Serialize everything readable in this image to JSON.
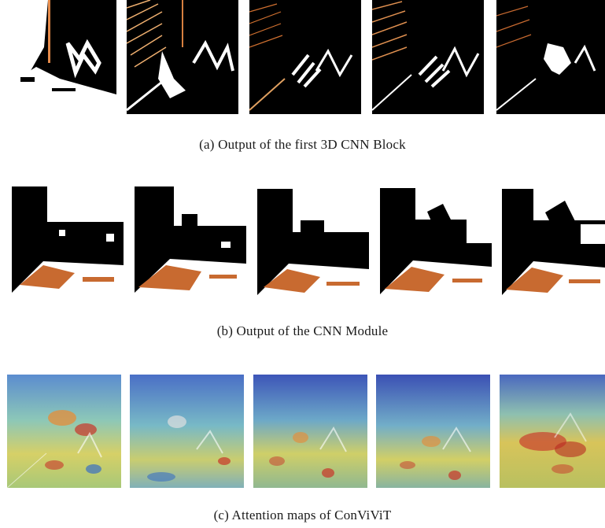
{
  "figure": {
    "captions": {
      "a": "(a) Output of the first 3D CNN Block",
      "b": "(b) Output of the CNN Module",
      "c": "(c) Attention maps of ConViViT"
    },
    "colors": {
      "background": "#000000",
      "hot": "#ffffff",
      "copper": "#d06a2a",
      "jet_blue": "#3b6fc2",
      "jet_cyan": "#6cc4d0",
      "jet_yellow": "#d7d05a",
      "jet_red": "#c8352a"
    },
    "panel_count_per_row": 5
  }
}
